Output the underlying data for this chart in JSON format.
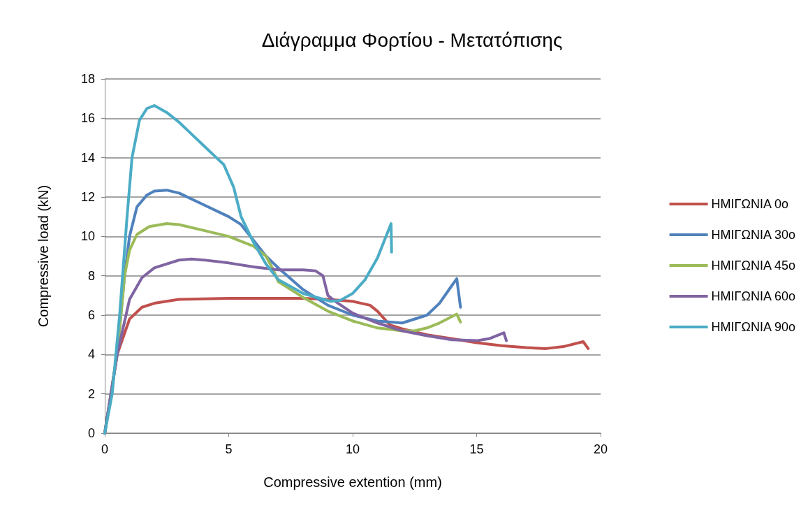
{
  "chart_data": {
    "type": "line",
    "title": "Διάγραμμα Φορτίου - Μετατόπισης",
    "xlabel": "Compressive extention (mm)",
    "ylabel": "Compressive load (kN)",
    "xlim": [
      0,
      20
    ],
    "xticks": [
      0,
      5,
      10,
      15,
      20
    ],
    "ylim": [
      0,
      18
    ],
    "yticks": [
      0,
      2,
      4,
      6,
      8,
      10,
      12,
      14,
      16,
      18
    ],
    "grid": "y",
    "legend": "right",
    "marker": "none",
    "line_style": "solid",
    "series": [
      {
        "name": "ΗΜΙΓΩΝΙΑ 0ο",
        "color": "#c0504d",
        "x": [
          0,
          0.5,
          1,
          1.5,
          2,
          3,
          5,
          8,
          9,
          10,
          10.7,
          11,
          11.5,
          12,
          13,
          14,
          15,
          16,
          17,
          17.8,
          18.5,
          19.3,
          19.5
        ],
        "values": [
          0,
          4,
          5.8,
          6.4,
          6.6,
          6.8,
          6.85,
          6.85,
          6.8,
          6.7,
          6.5,
          6.2,
          5.5,
          5.3,
          5,
          4.8,
          4.6,
          4.45,
          4.35,
          4.3,
          4.4,
          4.65,
          4.3
        ]
      },
      {
        "name": "ΗΜΙΓΩΝΙΑ 30ο",
        "color": "#4f81bd",
        "x": [
          0,
          0.5,
          0.8,
          1,
          1.3,
          1.7,
          2,
          2.5,
          3,
          4,
          5,
          5.5,
          6,
          6.5,
          7,
          8,
          9,
          10,
          11,
          12,
          13,
          13.5,
          14,
          14.2,
          14.35
        ],
        "values": [
          0,
          4,
          8,
          10,
          11.5,
          12.1,
          12.3,
          12.35,
          12.2,
          11.6,
          11,
          10.6,
          9.8,
          9,
          8.4,
          7.3,
          6.5,
          6,
          5.7,
          5.6,
          6,
          6.6,
          7.5,
          7.85,
          6.4
        ]
      },
      {
        "name": "ΗΜΙΓΩΝΙΑ 45ο",
        "color": "#9bbb59",
        "x": [
          0,
          0.5,
          0.8,
          1,
          1.3,
          1.8,
          2.5,
          3,
          4,
          5,
          6,
          6.5,
          6.8,
          7,
          8,
          9,
          10,
          11,
          12,
          12.5,
          13,
          13.5,
          14.2,
          14.35
        ],
        "values": [
          0,
          4,
          8,
          9.3,
          10.1,
          10.5,
          10.65,
          10.6,
          10.3,
          10,
          9.5,
          9,
          8.3,
          7.7,
          6.9,
          6.2,
          5.7,
          5.35,
          5.2,
          5.2,
          5.35,
          5.6,
          6.05,
          5.65
        ]
      },
      {
        "name": "ΗΜΙΓΩΝΙΑ 60ο",
        "color": "#8064a2",
        "x": [
          0,
          0.5,
          1,
          1.5,
          2,
          3,
          3.5,
          4,
          5,
          6,
          7,
          8,
          8.5,
          8.8,
          9,
          9.3,
          10,
          11,
          12,
          13,
          14,
          15,
          15.5,
          16.1,
          16.2
        ],
        "values": [
          0,
          4,
          6.8,
          7.9,
          8.4,
          8.8,
          8.85,
          8.8,
          8.65,
          8.45,
          8.3,
          8.3,
          8.25,
          8,
          7,
          6.7,
          6.1,
          5.6,
          5.2,
          4.95,
          4.75,
          4.7,
          4.8,
          5.1,
          4.7
        ]
      },
      {
        "name": "ΗΜΙΓΩΝΙΑ 90ο",
        "color": "#4bacc6",
        "x": [
          0,
          0.3,
          0.6,
          0.9,
          1.1,
          1.4,
          1.7,
          2,
          2.5,
          3,
          3.5,
          4,
          4.5,
          4.8,
          5.2,
          5.5,
          6,
          6.5,
          7,
          8,
          9.1,
          9.5,
          10,
          10.5,
          11,
          11.55,
          11.57
        ],
        "values": [
          0,
          2,
          6,
          11,
          14,
          15.9,
          16.5,
          16.65,
          16.3,
          15.8,
          15.2,
          14.6,
          14,
          13.65,
          12.5,
          11,
          9.7,
          8.6,
          7.8,
          7.1,
          6.7,
          6.75,
          7.1,
          7.8,
          8.9,
          10.65,
          9.2
        ]
      }
    ]
  }
}
